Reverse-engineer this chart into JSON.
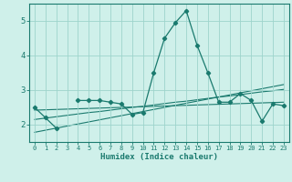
{
  "x": [
    0,
    1,
    2,
    3,
    4,
    5,
    6,
    7,
    8,
    9,
    10,
    11,
    12,
    13,
    14,
    15,
    16,
    17,
    18,
    19,
    20,
    21,
    22,
    23
  ],
  "main_line": [
    2.5,
    2.2,
    1.9,
    null,
    2.7,
    2.7,
    2.7,
    2.65,
    2.6,
    2.3,
    2.35,
    3.5,
    4.5,
    4.95,
    5.3,
    4.3,
    3.5,
    2.65,
    2.65,
    2.9,
    2.7,
    2.1,
    2.6,
    2.55
  ],
  "trend_line1": [
    1.78,
    1.84,
    1.9,
    1.96,
    2.02,
    2.08,
    2.14,
    2.2,
    2.26,
    2.32,
    2.38,
    2.44,
    2.5,
    2.56,
    2.62,
    2.68,
    2.74,
    2.8,
    2.86,
    2.92,
    2.98,
    3.04,
    3.1,
    3.16
  ],
  "trend_line2": [
    2.15,
    2.19,
    2.23,
    2.27,
    2.31,
    2.35,
    2.38,
    2.42,
    2.46,
    2.5,
    2.53,
    2.57,
    2.61,
    2.65,
    2.68,
    2.72,
    2.76,
    2.8,
    2.83,
    2.87,
    2.91,
    2.95,
    2.98,
    3.02
  ],
  "trend_line3": [
    2.42,
    2.43,
    2.44,
    2.45,
    2.46,
    2.47,
    2.48,
    2.49,
    2.5,
    2.51,
    2.52,
    2.53,
    2.54,
    2.55,
    2.56,
    2.57,
    2.58,
    2.59,
    2.6,
    2.61,
    2.62,
    2.63,
    2.64,
    2.65
  ],
  "line_color": "#1a7a6e",
  "bg_color": "#cff0ea",
  "grid_color": "#9dd4cc",
  "xlabel": "Humidex (Indice chaleur)",
  "ylim": [
    1.5,
    5.5
  ],
  "xlim": [
    -0.5,
    23.5
  ],
  "yticks": [
    2,
    3,
    4,
    5
  ],
  "xticks": [
    0,
    1,
    2,
    3,
    4,
    5,
    6,
    7,
    8,
    9,
    10,
    11,
    12,
    13,
    14,
    15,
    16,
    17,
    18,
    19,
    20,
    21,
    22,
    23
  ]
}
